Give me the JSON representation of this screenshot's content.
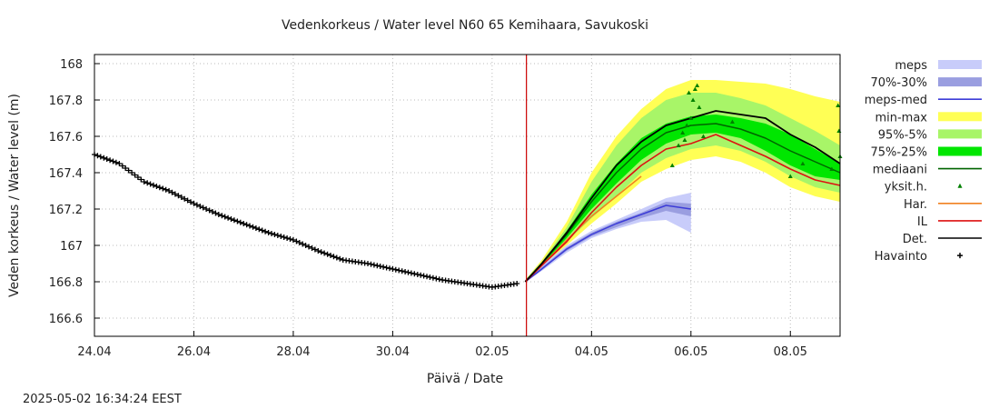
{
  "chart_data": {
    "type": "line",
    "title": "Vedenkorkeus / Water level   N60 65 Kemihaara, Savukoski",
    "xlabel": "Päivä / Date",
    "ylabel": "Veden korkeus / Water level (m)",
    "timestamp": "2025-05-02 16:34:24 EEST",
    "xlim": [
      "2025-04-24 00:00",
      "2025-05-09 00:00"
    ],
    "ylim": [
      166.5,
      168.05
    ],
    "x_ticks": [
      {
        "date": "2025-04-24",
        "label": "24.04"
      },
      {
        "date": "2025-04-26",
        "label": "26.04"
      },
      {
        "date": "2025-04-28",
        "label": "28.04"
      },
      {
        "date": "2025-04-30",
        "label": "30.04"
      },
      {
        "date": "2025-05-02",
        "label": "02.05"
      },
      {
        "date": "2025-05-04",
        "label": "04.05"
      },
      {
        "date": "2025-05-06",
        "label": "06.05"
      },
      {
        "date": "2025-05-08",
        "label": "08.05"
      }
    ],
    "y_ticks": [
      {
        "value": 166.6,
        "label": "166.6"
      },
      {
        "value": 166.8,
        "label": "166.8"
      },
      {
        "value": 167.0,
        "label": "167"
      },
      {
        "value": 167.2,
        "label": "167.2"
      },
      {
        "value": 167.4,
        "label": "167.4"
      },
      {
        "value": 167.6,
        "label": "167.6"
      },
      {
        "value": 167.8,
        "label": "167.8"
      },
      {
        "value": 168.0,
        "label": "168"
      }
    ],
    "grid": true,
    "now_line": "2025-05-02 16:34",
    "legend_position": "right",
    "legend": [
      {
        "key": "meps",
        "label": "meps",
        "kind": "band",
        "color": "#c8ccfa"
      },
      {
        "key": "meps_70_30",
        "label": "70%-30%",
        "kind": "band",
        "color": "#9a9ee0"
      },
      {
        "key": "meps_med",
        "label": "meps-med",
        "kind": "line",
        "color": "#3c3cd8"
      },
      {
        "key": "min_max",
        "label": "min-max",
        "kind": "band",
        "color": "#ffff55"
      },
      {
        "key": "p95_5",
        "label": "95%-5%",
        "kind": "band",
        "color": "#a8f568"
      },
      {
        "key": "p75_25",
        "label": "75%-25%",
        "kind": "band",
        "color": "#00e600"
      },
      {
        "key": "mediaani",
        "label": "mediaani",
        "kind": "line",
        "color": "#006400"
      },
      {
        "key": "yksit",
        "label": "yksit.h.",
        "kind": "triangle",
        "color": "#008000"
      },
      {
        "key": "har",
        "label": "Har.",
        "kind": "line",
        "color": "#f08020"
      },
      {
        "key": "il",
        "label": "IL",
        "kind": "line",
        "color": "#dd1111"
      },
      {
        "key": "det",
        "label": "Det.",
        "kind": "line",
        "color": "#000000"
      },
      {
        "key": "havainto",
        "label": "Havainto",
        "kind": "plus",
        "color": "#000000"
      }
    ],
    "observed": {
      "name": "Havainto",
      "points": [
        [
          "2025-04-24 00:00",
          167.5
        ],
        [
          "2025-04-24 12:00",
          167.45
        ],
        [
          "2025-04-25 00:00",
          167.35
        ],
        [
          "2025-04-25 12:00",
          167.3
        ],
        [
          "2025-04-26 00:00",
          167.23
        ],
        [
          "2025-04-26 12:00",
          167.17
        ],
        [
          "2025-04-27 00:00",
          167.12
        ],
        [
          "2025-04-27 12:00",
          167.07
        ],
        [
          "2025-04-28 00:00",
          167.03
        ],
        [
          "2025-04-28 12:00",
          166.97
        ],
        [
          "2025-04-29 00:00",
          166.92
        ],
        [
          "2025-04-29 12:00",
          166.9
        ],
        [
          "2025-04-30 00:00",
          166.87
        ],
        [
          "2025-04-30 12:00",
          166.84
        ],
        [
          "2025-05-01 00:00",
          166.81
        ],
        [
          "2025-05-01 12:00",
          166.79
        ],
        [
          "2025-05-02 00:00",
          166.77
        ],
        [
          "2025-05-02 12:00",
          166.79
        ]
      ]
    },
    "forecast": {
      "meps_band": [
        [
          "2025-05-02 16:00",
          166.8,
          166.81
        ],
        [
          "2025-05-03 00:00",
          166.86,
          166.89
        ],
        [
          "2025-05-03 12:00",
          166.96,
          167.0
        ],
        [
          "2025-05-04 00:00",
          167.04,
          167.08
        ],
        [
          "2025-05-04 12:00",
          167.09,
          167.14
        ],
        [
          "2025-05-05 00:00",
          167.13,
          167.2
        ],
        [
          "2025-05-05 12:00",
          167.14,
          167.26
        ],
        [
          "2025-05-06 00:00",
          167.07,
          167.29
        ]
      ],
      "meps_70_30": [
        [
          "2025-05-02 16:00",
          166.8,
          166.81
        ],
        [
          "2025-05-03 00:00",
          166.87,
          166.88
        ],
        [
          "2025-05-03 12:00",
          166.97,
          166.99
        ],
        [
          "2025-05-04 00:00",
          167.05,
          167.07
        ],
        [
          "2025-05-04 12:00",
          167.1,
          167.13
        ],
        [
          "2025-05-05 00:00",
          167.15,
          167.18
        ],
        [
          "2025-05-05 12:00",
          167.19,
          167.24
        ],
        [
          "2025-05-06 00:00",
          167.16,
          167.23
        ]
      ],
      "meps_med": [
        [
          "2025-05-02 16:00",
          166.8
        ],
        [
          "2025-05-03 00:00",
          166.87
        ],
        [
          "2025-05-03 12:00",
          166.98
        ],
        [
          "2025-05-04 00:00",
          167.06
        ],
        [
          "2025-05-04 12:00",
          167.12
        ],
        [
          "2025-05-05 00:00",
          167.17
        ],
        [
          "2025-05-05 12:00",
          167.22
        ],
        [
          "2025-05-06 00:00",
          167.2
        ]
      ],
      "min_max": [
        [
          "2025-05-02 16:00",
          166.8,
          166.81
        ],
        [
          "2025-05-03 00:00",
          166.88,
          166.92
        ],
        [
          "2025-05-03 12:00",
          167.0,
          167.13
        ],
        [
          "2025-05-04 00:00",
          167.12,
          167.4
        ],
        [
          "2025-05-04 12:00",
          167.23,
          167.6
        ],
        [
          "2025-05-05 00:00",
          167.35,
          167.75
        ],
        [
          "2025-05-05 12:00",
          167.42,
          167.86
        ],
        [
          "2025-05-06 00:00",
          167.47,
          167.91
        ],
        [
          "2025-05-06 12:00",
          167.49,
          167.91
        ],
        [
          "2025-05-07 00:00",
          167.46,
          167.9
        ],
        [
          "2025-05-07 12:00",
          167.4,
          167.89
        ],
        [
          "2025-05-08 00:00",
          167.32,
          167.86
        ],
        [
          "2025-05-08 12:00",
          167.27,
          167.82
        ],
        [
          "2025-05-09 00:00",
          167.24,
          167.79
        ]
      ],
      "p95_5": [
        [
          "2025-05-02 16:00",
          166.8,
          166.81
        ],
        [
          "2025-05-03 00:00",
          166.89,
          166.91
        ],
        [
          "2025-05-03 12:00",
          167.02,
          167.1
        ],
        [
          "2025-05-04 00:00",
          167.15,
          167.35
        ],
        [
          "2025-05-04 12:00",
          167.27,
          167.55
        ],
        [
          "2025-05-05 00:00",
          167.4,
          167.7
        ],
        [
          "2025-05-05 12:00",
          167.48,
          167.8
        ],
        [
          "2025-05-06 00:00",
          167.53,
          167.84
        ],
        [
          "2025-05-06 12:00",
          167.55,
          167.84
        ],
        [
          "2025-05-07 00:00",
          167.52,
          167.81
        ],
        [
          "2025-05-07 12:00",
          167.46,
          167.77
        ],
        [
          "2025-05-08 00:00",
          167.38,
          167.7
        ],
        [
          "2025-05-08 12:00",
          167.32,
          167.63
        ],
        [
          "2025-05-09 00:00",
          167.29,
          167.55
        ]
      ],
      "p75_25": [
        [
          "2025-05-02 16:00",
          166.8,
          166.8
        ],
        [
          "2025-05-03 00:00",
          166.89,
          166.9
        ],
        [
          "2025-05-03 12:00",
          167.04,
          167.08
        ],
        [
          "2025-05-04 00:00",
          167.2,
          167.28
        ],
        [
          "2025-05-04 12:00",
          167.34,
          167.45
        ],
        [
          "2025-05-05 00:00",
          167.47,
          167.59
        ],
        [
          "2025-05-05 12:00",
          167.56,
          167.67
        ],
        [
          "2025-05-06 00:00",
          167.61,
          167.71
        ],
        [
          "2025-05-06 12:00",
          167.62,
          167.72
        ],
        [
          "2025-05-07 00:00",
          167.59,
          167.7
        ],
        [
          "2025-05-07 12:00",
          167.52,
          167.67
        ],
        [
          "2025-05-08 00:00",
          167.44,
          167.61
        ],
        [
          "2025-05-08 12:00",
          167.38,
          167.53
        ],
        [
          "2025-05-09 00:00",
          167.36,
          167.45
        ]
      ],
      "mediaani": [
        [
          "2025-05-02 16:00",
          166.8
        ],
        [
          "2025-05-03 00:00",
          166.9
        ],
        [
          "2025-05-03 12:00",
          167.06
        ],
        [
          "2025-05-04 00:00",
          167.24
        ],
        [
          "2025-05-04 12:00",
          167.4
        ],
        [
          "2025-05-05 00:00",
          167.53
        ],
        [
          "2025-05-05 12:00",
          167.62
        ],
        [
          "2025-05-06 00:00",
          167.66
        ],
        [
          "2025-05-06 12:00",
          167.67
        ],
        [
          "2025-05-07 00:00",
          167.64
        ],
        [
          "2025-05-07 12:00",
          167.59
        ],
        [
          "2025-05-08 00:00",
          167.52
        ],
        [
          "2025-05-08 12:00",
          167.46
        ],
        [
          "2025-05-09 00:00",
          167.4
        ]
      ],
      "yksit": [
        [
          "2025-05-05 18:00",
          167.55
        ],
        [
          "2025-05-05 20:00",
          167.62
        ],
        [
          "2025-05-05 22:00",
          167.66
        ],
        [
          "2025-05-06 00:00",
          167.7
        ],
        [
          "2025-05-06 01:00",
          167.8
        ],
        [
          "2025-05-06 02:00",
          167.86
        ],
        [
          "2025-05-06 03:00",
          167.88
        ],
        [
          "2025-05-06 04:00",
          167.76
        ],
        [
          "2025-05-05 23:00",
          167.84
        ],
        [
          "2025-05-05 21:00",
          167.58
        ],
        [
          "2025-05-05 15:00",
          167.44
        ],
        [
          "2025-05-06 06:00",
          167.6
        ],
        [
          "2025-05-06 20:00",
          167.68
        ],
        [
          "2025-05-08 00:00",
          167.38
        ],
        [
          "2025-05-08 06:00",
          167.45
        ],
        [
          "2025-05-08 20:00",
          167.42
        ],
        [
          "2025-05-09 00:00",
          167.49
        ],
        [
          "2025-05-08 23:00",
          167.77
        ],
        [
          "2025-05-08 23:30",
          167.63
        ]
      ],
      "har": [
        [
          "2025-05-02 16:00",
          166.8
        ],
        [
          "2025-05-03 00:00",
          166.89
        ],
        [
          "2025-05-03 12:00",
          167.03
        ],
        [
          "2025-05-04 00:00",
          167.16
        ],
        [
          "2025-05-04 12:00",
          167.27
        ],
        [
          "2025-05-05 00:00",
          167.38
        ]
      ],
      "il": [
        [
          "2025-05-02 16:00",
          166.8
        ],
        [
          "2025-05-03 00:00",
          166.89
        ],
        [
          "2025-05-03 12:00",
          167.02
        ],
        [
          "2025-05-04 00:00",
          167.18
        ],
        [
          "2025-05-04 12:00",
          167.32
        ],
        [
          "2025-05-05 00:00",
          167.44
        ],
        [
          "2025-05-05 12:00",
          167.53
        ],
        [
          "2025-05-06 00:00",
          167.56
        ],
        [
          "2025-05-06 12:00",
          167.61
        ],
        [
          "2025-05-07 00:00",
          167.55
        ],
        [
          "2025-05-07 12:00",
          167.49
        ],
        [
          "2025-05-08 00:00",
          167.42
        ],
        [
          "2025-05-08 12:00",
          167.36
        ],
        [
          "2025-05-09 00:00",
          167.33
        ]
      ],
      "det": [
        [
          "2025-05-02 16:00",
          166.8
        ],
        [
          "2025-05-03 00:00",
          166.9
        ],
        [
          "2025-05-03 12:00",
          167.07
        ],
        [
          "2025-05-04 00:00",
          167.26
        ],
        [
          "2025-05-04 12:00",
          167.44
        ],
        [
          "2025-05-05 00:00",
          167.57
        ],
        [
          "2025-05-05 12:00",
          167.66
        ],
        [
          "2025-05-06 00:00",
          167.7
        ],
        [
          "2025-05-06 12:00",
          167.74
        ],
        [
          "2025-05-07 00:00",
          167.72
        ],
        [
          "2025-05-07 12:00",
          167.7
        ],
        [
          "2025-05-08 00:00",
          167.61
        ],
        [
          "2025-05-08 12:00",
          167.54
        ],
        [
          "2025-05-09 00:00",
          167.45
        ]
      ]
    }
  }
}
